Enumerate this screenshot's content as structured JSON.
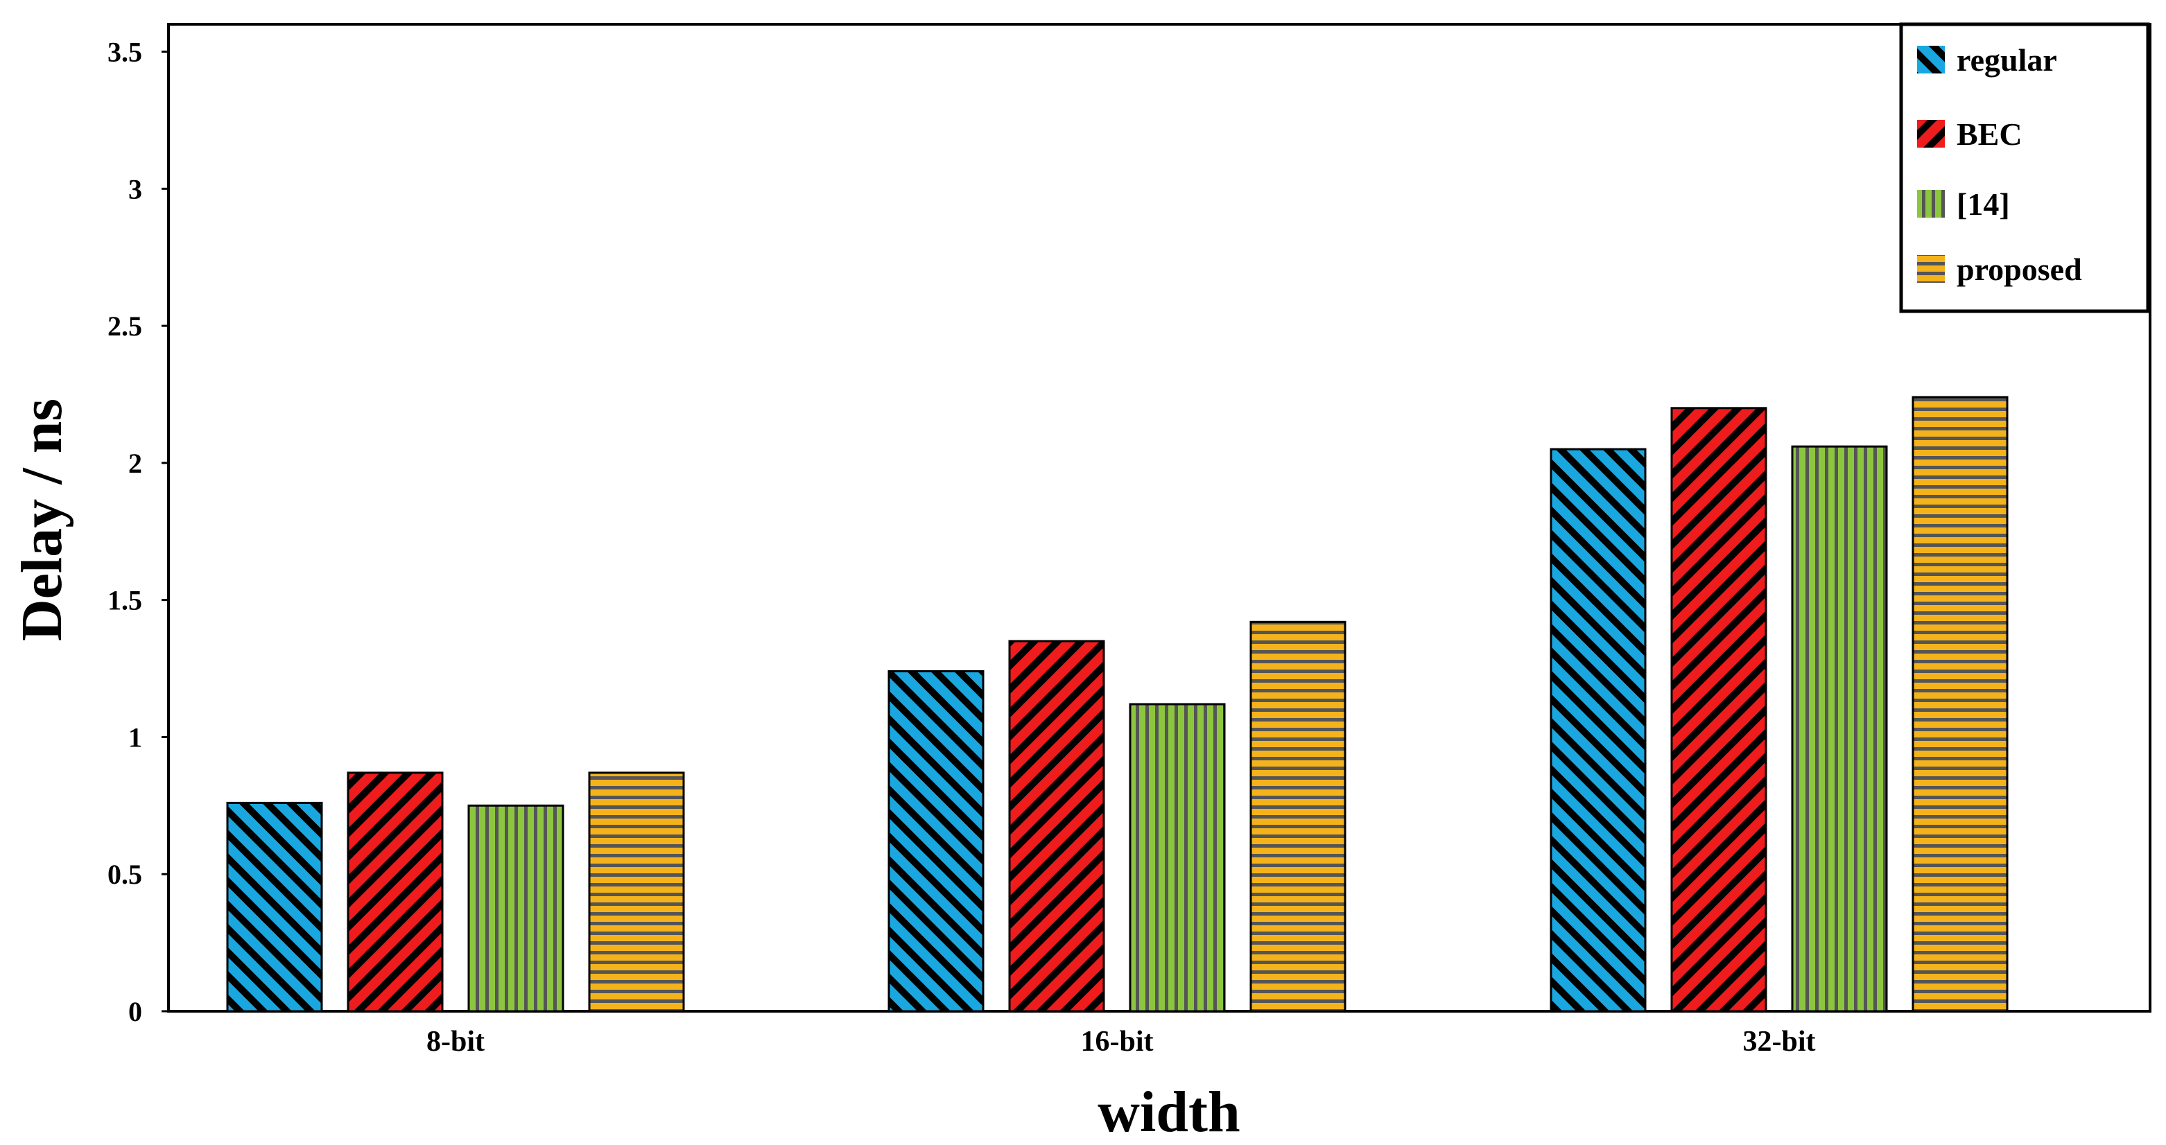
{
  "chart_data": {
    "type": "bar",
    "title": "",
    "xlabel": "width",
    "ylabel": "Delay / ns",
    "categories": [
      "8-bit",
      "16-bit",
      "32-bit"
    ],
    "ylim": [
      0,
      3.6
    ],
    "yticks": [
      "0",
      "0.5",
      "1",
      "1.5",
      "2",
      "2.5",
      "3",
      "3.5"
    ],
    "ytick_values": [
      0,
      0.5,
      1,
      1.5,
      2,
      2.5,
      3,
      3.5
    ],
    "grid": false,
    "legend_position": "top-right",
    "series": [
      {
        "name": "regular",
        "values": [
          0.76,
          1.24,
          2.05
        ],
        "color": "#1aa7e0",
        "pattern": "diagonal-down"
      },
      {
        "name": "BEC",
        "values": [
          0.87,
          1.35,
          2.2
        ],
        "color": "#ee1c1c",
        "pattern": "diagonal-up"
      },
      {
        "name": "[14]",
        "values": [
          0.75,
          1.12,
          2.06
        ],
        "color": "#8cc63f",
        "pattern": "vertical"
      },
      {
        "name": "proposed",
        "values": [
          0.87,
          1.42,
          2.24
        ],
        "color": "#f5b31b",
        "pattern": "horizontal"
      }
    ]
  }
}
